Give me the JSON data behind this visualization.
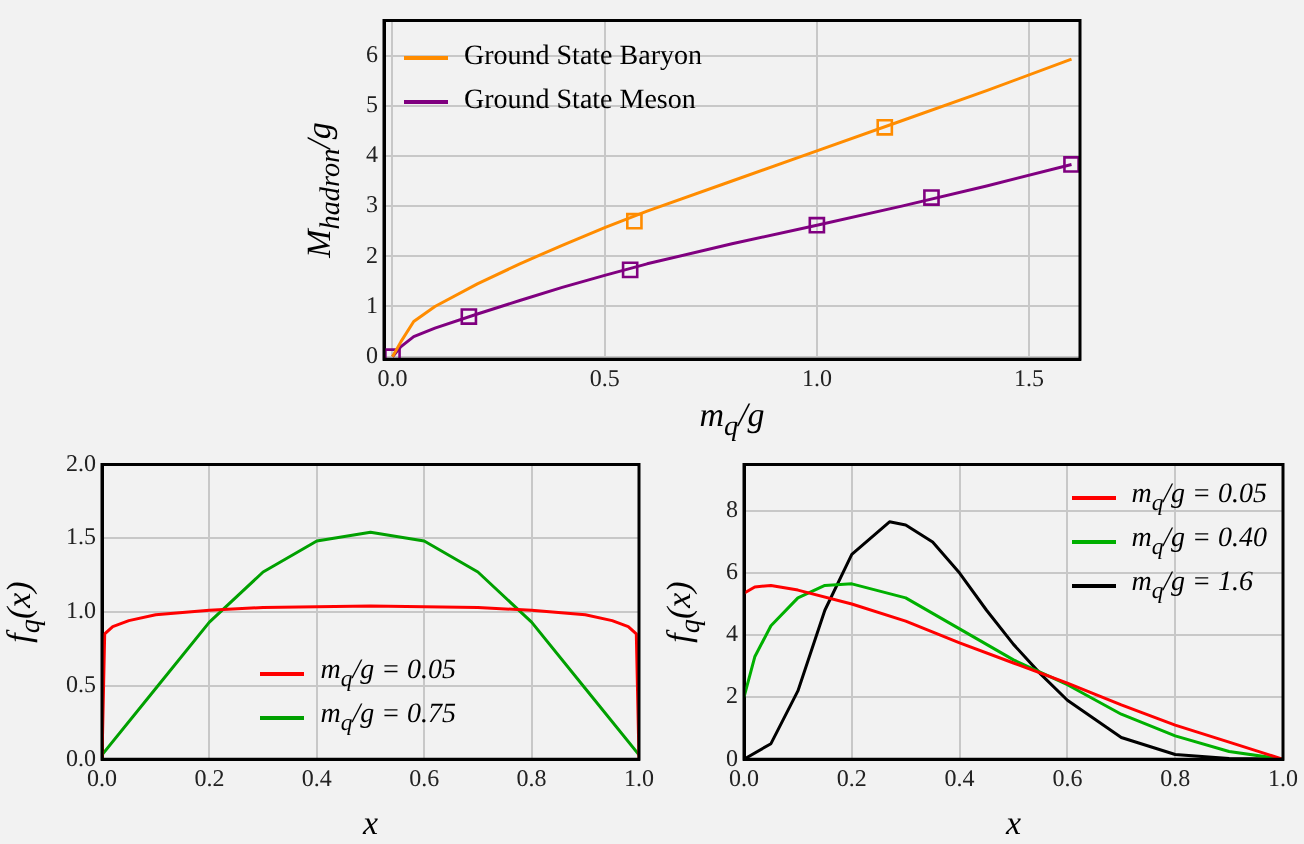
{
  "chart_data": [
    {
      "type": "line",
      "xlabel": "m$_{q}$/g",
      "ylabel": "M$_{hadron}$/g",
      "xlim": [
        -0.02,
        1.62
      ],
      "ylim": [
        -0.05,
        6.7
      ],
      "xticks": [
        {
          "value": 0,
          "label": "0.0"
        },
        {
          "value": 0.5,
          "label": "0.5"
        },
        {
          "value": 1,
          "label": "1.0"
        },
        {
          "value": 1.5,
          "label": "1.5"
        }
      ],
      "yticks": [
        0,
        1,
        2,
        3,
        4,
        5,
        6
      ],
      "grid": true,
      "legend": "top left",
      "series": [
        {
          "name": "Ground State Baryon",
          "color": "#ff8c00",
          "x": [
            0,
            0.02,
            0.05,
            0.1,
            0.2,
            0.3,
            0.4,
            0.5,
            0.6,
            0.8,
            1.0,
            1.2,
            1.4,
            1.6
          ],
          "values": [
            0,
            0.3,
            0.7,
            1.0,
            1.45,
            1.85,
            2.22,
            2.57,
            2.9,
            3.5,
            4.1,
            4.7,
            5.3,
            5.93
          ]
        },
        {
          "name": "Ground State Meson",
          "color": "#800080",
          "x": [
            0,
            0.02,
            0.05,
            0.1,
            0.2,
            0.3,
            0.4,
            0.5,
            0.6,
            0.8,
            1.0,
            1.2,
            1.4,
            1.6
          ],
          "values": [
            0,
            0.2,
            0.4,
            0.57,
            0.85,
            1.12,
            1.38,
            1.62,
            1.85,
            2.25,
            2.62,
            3.0,
            3.4,
            3.83
          ]
        },
        {
          "type": "scatter",
          "marker": "square",
          "color": "#ff8c00",
          "x": [
            0.57,
            1.16
          ],
          "values": [
            2.7,
            4.57
          ]
        },
        {
          "type": "scatter",
          "marker": "square",
          "color": "#800080",
          "x": [
            0,
            0.18,
            0.56,
            1.0,
            1.27,
            1.6
          ],
          "values": [
            0,
            0.8,
            1.73,
            2.62,
            3.17,
            3.83
          ]
        }
      ]
    },
    {
      "type": "line",
      "xlabel": "x",
      "ylabel": "f$_{q}$(x)",
      "xlim": [
        0,
        1
      ],
      "ylim": [
        0,
        2
      ],
      "xticks": [
        {
          "value": 0,
          "label": "0.0"
        },
        {
          "value": 0.2,
          "label": "0.2"
        },
        {
          "value": 0.4,
          "label": "0.4"
        },
        {
          "value": 0.6,
          "label": "0.6"
        },
        {
          "value": 0.8,
          "label": "0.8"
        },
        {
          "value": 1,
          "label": "1.0"
        }
      ],
      "yticks": [
        {
          "value": 0,
          "label": "0.0"
        },
        {
          "value": 0.5,
          "label": "0.5"
        },
        {
          "value": 1,
          "label": "1.0"
        },
        {
          "value": 1.5,
          "label": "1.5"
        },
        {
          "value": 2,
          "label": "2.0"
        }
      ],
      "grid": true,
      "legend": "center",
      "series": [
        {
          "name": "m$_{q}$/g = 0.05",
          "color": "#ff0000",
          "x": [
            0,
            0.005,
            0.02,
            0.05,
            0.1,
            0.2,
            0.3,
            0.5,
            0.7,
            0.8,
            0.9,
            0.95,
            0.98,
            0.995,
            1
          ],
          "values": [
            0,
            0.85,
            0.9,
            0.94,
            0.98,
            1.01,
            1.03,
            1.04,
            1.03,
            1.01,
            0.98,
            0.94,
            0.9,
            0.85,
            0
          ]
        },
        {
          "name": "m$_{q}$/g = 0.75",
          "color": "#00a000",
          "x": [
            0,
            0.1,
            0.2,
            0.3,
            0.4,
            0.5,
            0.6,
            0.7,
            0.8,
            0.9,
            1
          ],
          "values": [
            0.03,
            0.48,
            0.93,
            1.27,
            1.48,
            1.54,
            1.48,
            1.27,
            0.93,
            0.48,
            0.03
          ]
        }
      ]
    },
    {
      "type": "line",
      "xlabel": "x",
      "ylabel": "f$_{q}$(x)",
      "xlim": [
        0,
        1
      ],
      "ylim": [
        0,
        9.5
      ],
      "xticks": [
        {
          "value": 0,
          "label": "0.0"
        },
        {
          "value": 0.2,
          "label": "0.2"
        },
        {
          "value": 0.4,
          "label": "0.4"
        },
        {
          "value": 0.6,
          "label": "0.6"
        },
        {
          "value": 0.8,
          "label": "0.8"
        },
        {
          "value": 1,
          "label": "1.0"
        }
      ],
      "yticks": [
        0,
        2,
        4,
        6,
        8
      ],
      "grid": true,
      "legend": "top right",
      "series": [
        {
          "name": "m$_{q}$/g = 0.05",
          "color": "#ff0000",
          "x": [
            0,
            0.02,
            0.05,
            0.1,
            0.2,
            0.3,
            0.4,
            0.5,
            0.6,
            0.7,
            0.8,
            0.9,
            1
          ],
          "values": [
            5.35,
            5.55,
            5.6,
            5.45,
            5.0,
            4.45,
            3.75,
            3.1,
            2.45,
            1.75,
            1.1,
            0.55,
            0
          ]
        },
        {
          "name": "m$_{q}$/g = 0.40",
          "color": "#00b000",
          "x": [
            0,
            0.02,
            0.05,
            0.1,
            0.15,
            0.2,
            0.3,
            0.4,
            0.5,
            0.6,
            0.7,
            0.8,
            0.9,
            1
          ],
          "values": [
            2.0,
            3.3,
            4.3,
            5.2,
            5.6,
            5.65,
            5.2,
            4.2,
            3.2,
            2.4,
            1.45,
            0.75,
            0.25,
            0
          ]
        },
        {
          "name": "m$_{q}$/g = 1.6",
          "color": "#000000",
          "x": [
            0,
            0.05,
            0.1,
            0.15,
            0.2,
            0.27,
            0.3,
            0.35,
            0.4,
            0.45,
            0.5,
            0.55,
            0.6,
            0.7,
            0.8,
            0.9,
            1
          ],
          "values": [
            0,
            0.5,
            2.2,
            4.8,
            6.6,
            7.65,
            7.55,
            7.0,
            6.0,
            4.8,
            3.7,
            2.75,
            1.9,
            0.7,
            0.15,
            0.02,
            0
          ]
        }
      ]
    }
  ]
}
